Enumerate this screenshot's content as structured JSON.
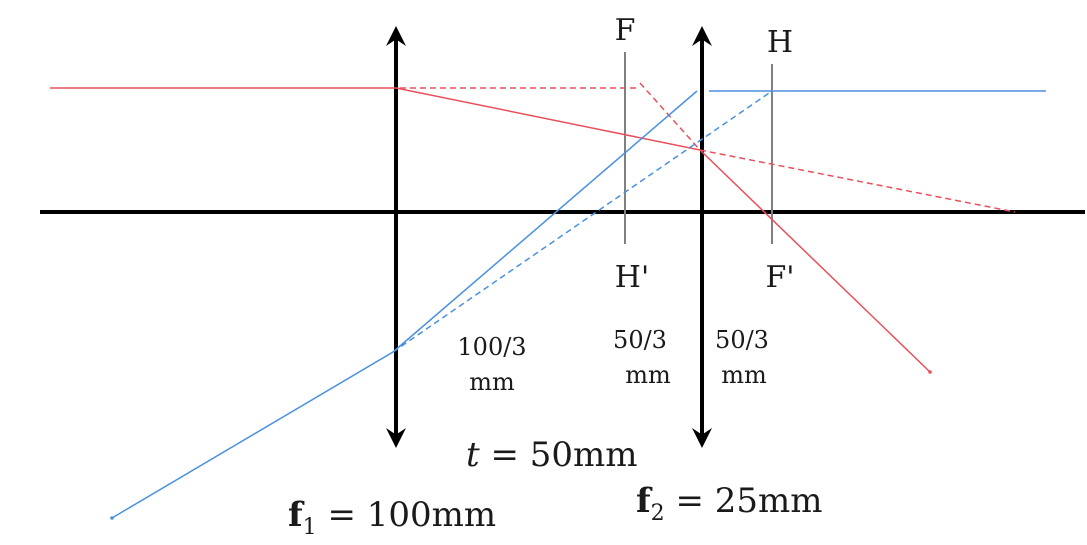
{
  "colors": {
    "axis": "#000000",
    "lens": "#000000",
    "red_ray": "#e8505b",
    "blue_ray": "#4a90e2",
    "plane_line": "#808080"
  },
  "plane_labels": {
    "F": "F",
    "H": "H",
    "H_prime": "H'",
    "F_prime": "F'"
  },
  "distances": [
    {
      "value": "100/3",
      "unit": "mm"
    },
    {
      "value": "50/3",
      "unit": "mm"
    },
    {
      "value": "50/3",
      "unit": "mm"
    }
  ],
  "separation": {
    "symbol": "t",
    "rest": " = 50mm"
  },
  "lens1": {
    "symbol": "f",
    "subscript": "1",
    "rest": " = 100mm"
  },
  "lens2": {
    "symbol": "f",
    "subscript": "2",
    "rest": " = 25mm"
  }
}
